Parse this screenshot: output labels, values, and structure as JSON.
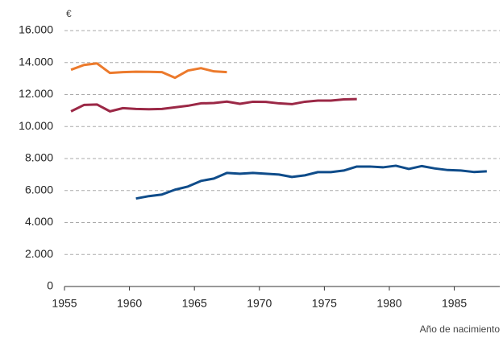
{
  "chart_data": {
    "type": "line",
    "y_label": "€",
    "x_label": "Año de nacimiento",
    "x": [
      1955.5,
      1956.5,
      1957.5,
      1958.5,
      1959.5,
      1960.5,
      1961.5,
      1962.5,
      1963.5,
      1964.5,
      1965.5,
      1966.5,
      1967.5,
      1968.5,
      1969.5,
      1970.5,
      1971.5,
      1972.5,
      1973.5,
      1974.5,
      1975.5,
      1976.5,
      1977.5,
      1978.5,
      1979.5,
      1980.5,
      1981.5,
      1982.5,
      1983.5,
      1984.5,
      1985.5,
      1986.5,
      1987.5
    ],
    "series": [
      {
        "color": "#ec7a2c",
        "values": [
          13550,
          13850,
          13950,
          13350,
          13400,
          13430,
          13420,
          13400,
          13050,
          13500,
          13650,
          13450,
          13400,
          null,
          null,
          null,
          null,
          null,
          null,
          null,
          null,
          null,
          null,
          null,
          null,
          null,
          null,
          null,
          null,
          null,
          null,
          null,
          null
        ]
      },
      {
        "color": "#9b2846",
        "values": [
          10950,
          11350,
          11380,
          10950,
          11150,
          11100,
          11080,
          11100,
          11200,
          11300,
          11450,
          11470,
          11560,
          11420,
          11550,
          11540,
          11450,
          11400,
          11550,
          11620,
          11620,
          11700,
          11720,
          null,
          null,
          null,
          null,
          null,
          null,
          null,
          null,
          null,
          null
        ]
      },
      {
        "color": "#0f4c8a",
        "values": [
          null,
          null,
          null,
          null,
          null,
          5500,
          5650,
          5750,
          6050,
          6250,
          6600,
          6750,
          7100,
          7050,
          7100,
          7050,
          7000,
          6850,
          6950,
          7150,
          7150,
          7250,
          7500,
          7500,
          7450,
          7550,
          7350,
          7530,
          7380,
          7280,
          7250,
          7160,
          7200
        ]
      }
    ],
    "xlim": [
      1955,
      1988.5
    ],
    "xticks": [
      1955,
      1960,
      1965,
      1970,
      1975,
      1980,
      1985
    ],
    "ylim": [
      0,
      16000
    ],
    "yticks": [
      0,
      {
        "value": 2000,
        "label": "2.000"
      },
      {
        "value": 4000,
        "label": "4.000"
      },
      {
        "value": 6000,
        "label": "6.000"
      },
      {
        "value": 8000,
        "label": "8.000"
      },
      {
        "value": 10000,
        "label": "10.000"
      },
      {
        "value": 12000,
        "label": "12.000"
      },
      {
        "value": 14000,
        "label": "14.000"
      },
      {
        "value": 16000,
        "label": "16.000"
      }
    ],
    "grid": true
  }
}
